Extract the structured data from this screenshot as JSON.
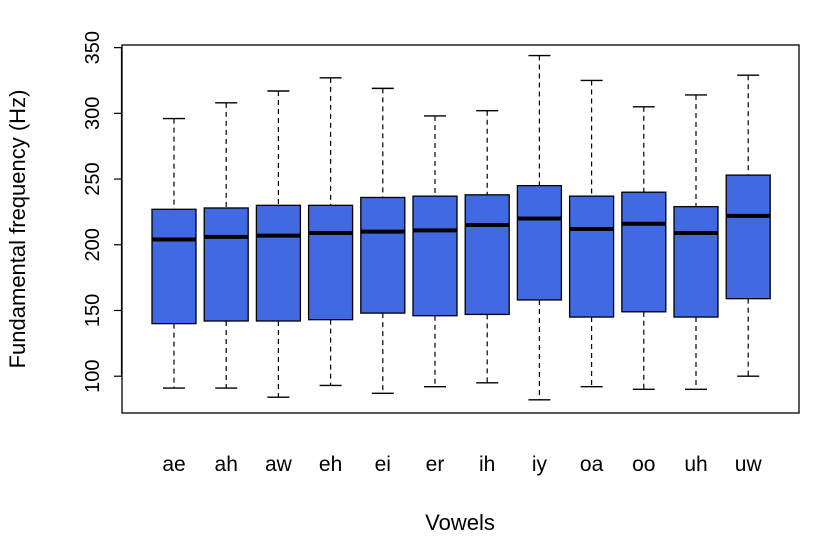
{
  "chart_data": {
    "type": "boxplot",
    "title": "",
    "xlabel": "Vowels",
    "ylabel": "Fundamental frequency (Hz)",
    "ylim": [
      72,
      352
    ],
    "yticks": [
      100,
      150,
      200,
      250,
      300,
      350
    ],
    "grid": false,
    "legend": "none",
    "box_color": "#4169E1",
    "categories": [
      "ae",
      "ah",
      "aw",
      "eh",
      "ei",
      "er",
      "ih",
      "iy",
      "oa",
      "oo",
      "uh",
      "uw"
    ],
    "boxes": [
      {
        "label": "ae",
        "min": 91,
        "q1": 140,
        "median": 204,
        "q3": 227,
        "max": 296
      },
      {
        "label": "ah",
        "min": 91,
        "q1": 142,
        "median": 206,
        "q3": 228,
        "max": 308
      },
      {
        "label": "aw",
        "min": 84,
        "q1": 142,
        "median": 207,
        "q3": 230,
        "max": 317
      },
      {
        "label": "eh",
        "min": 93,
        "q1": 143,
        "median": 209,
        "q3": 230,
        "max": 327
      },
      {
        "label": "ei",
        "min": 87,
        "q1": 148,
        "median": 210,
        "q3": 236,
        "max": 319
      },
      {
        "label": "er",
        "min": 92,
        "q1": 146,
        "median": 211,
        "q3": 237,
        "max": 298
      },
      {
        "label": "ih",
        "min": 95,
        "q1": 147,
        "median": 215,
        "q3": 238,
        "max": 302
      },
      {
        "label": "iy",
        "min": 82,
        "q1": 158,
        "median": 220,
        "q3": 245,
        "max": 344
      },
      {
        "label": "oa",
        "min": 92,
        "q1": 145,
        "median": 212,
        "q3": 237,
        "max": 325
      },
      {
        "label": "oo",
        "min": 90,
        "q1": 149,
        "median": 216,
        "q3": 240,
        "max": 305
      },
      {
        "label": "uh",
        "min": 90,
        "q1": 145,
        "median": 209,
        "q3": 229,
        "max": 314
      },
      {
        "label": "uw",
        "min": 100,
        "q1": 159,
        "median": 222,
        "q3": 253,
        "max": 329
      }
    ]
  }
}
